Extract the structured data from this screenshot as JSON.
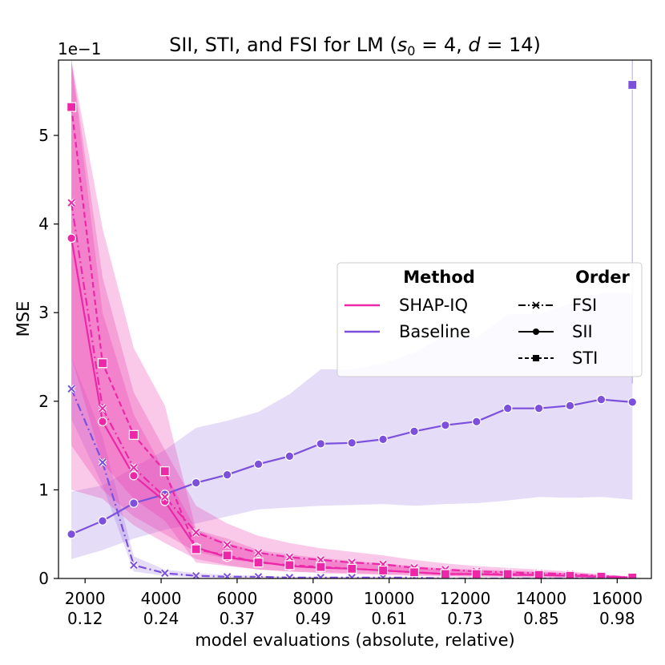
{
  "chart_data": {
    "type": "line",
    "title": "SII, STI, and FSI for LM (s0 = 4, d = 14)",
    "title_parts": {
      "prefix": "SII, STI, and FSI for LM (",
      "s_sym": "s",
      "s_sub": "0",
      "s_val": " = 4, ",
      "d_sym": "d",
      "d_val": " = 14)"
    },
    "ylabel": "MSE",
    "xlabel": "model evaluations (absolute, relative)",
    "y_scale_label": "1e−1",
    "xlim": [
      1300,
      16900
    ],
    "ylim": [
      0,
      5.85
    ],
    "x_ticks": [
      {
        "value": 2000,
        "abs": "2000",
        "rel": "0.12"
      },
      {
        "value": 4000,
        "abs": "4000",
        "rel": "0.24"
      },
      {
        "value": 6000,
        "abs": "6000",
        "rel": "0.37"
      },
      {
        "value": 8000,
        "abs": "8000",
        "rel": "0.49"
      },
      {
        "value": 10000,
        "abs": "10000",
        "rel": "0.61"
      },
      {
        "value": 12000,
        "abs": "12000",
        "rel": "0.73"
      },
      {
        "value": 14000,
        "abs": "14000",
        "rel": "0.85"
      },
      {
        "value": 16000,
        "abs": "16000",
        "rel": "0.98"
      }
    ],
    "y_ticks": [
      {
        "value": 0,
        "label": "0"
      },
      {
        "value": 1,
        "label": "1"
      },
      {
        "value": 2,
        "label": "2"
      },
      {
        "value": 3,
        "label": "3"
      },
      {
        "value": 4,
        "label": "4"
      },
      {
        "value": 5,
        "label": "5"
      }
    ],
    "x": [
      1640,
      2460,
      3280,
      4100,
      4920,
      5740,
      6560,
      7380,
      8200,
      9020,
      9840,
      10660,
      11480,
      12300,
      13120,
      13940,
      14760,
      15580,
      16400
    ],
    "colors": {
      "shapiq": "#ec27a8",
      "baseline": "#7c4fdc"
    },
    "series": [
      {
        "name": "Baseline SII",
        "method": "Baseline",
        "order": "SII",
        "style": "solid",
        "marker": "circle",
        "values": [
          0.5,
          0.65,
          0.85,
          0.95,
          1.08,
          1.17,
          1.29,
          1.38,
          1.52,
          1.53,
          1.57,
          1.66,
          1.73,
          1.77,
          1.92,
          1.92,
          1.95,
          2.02,
          1.99
        ],
        "lower": [
          0.22,
          0.32,
          0.45,
          0.55,
          0.62,
          0.7,
          0.78,
          0.8,
          0.82,
          0.83,
          0.84,
          0.82,
          0.84,
          0.85,
          0.88,
          0.92,
          0.91,
          0.92,
          0.89
        ],
        "upper": [
          0.98,
          1.05,
          1.25,
          1.45,
          1.7,
          1.78,
          1.88,
          2.08,
          2.36,
          2.36,
          2.43,
          2.55,
          2.74,
          2.72,
          2.98,
          2.98,
          3.1,
          3.22,
          3.22
        ]
      },
      {
        "name": "Baseline FSI",
        "method": "Baseline",
        "order": "FSI",
        "style": "dashdot",
        "marker": "x",
        "values": [
          2.14,
          1.31,
          0.15,
          0.06,
          0.03,
          0.02,
          0.02,
          0.01,
          0.01,
          0.01,
          0.01,
          0.01,
          0.0,
          0.0,
          0.0,
          0.0,
          0.0,
          0.0,
          0.0
        ],
        "lower": [
          1.8,
          1.05,
          0.08,
          0.03,
          0.01,
          0.01,
          0.0,
          0.0,
          0.0,
          0.0,
          0.0,
          0.0,
          0.0,
          0.0,
          0.0,
          0.0,
          0.0,
          0.0,
          0.0
        ],
        "upper": [
          2.5,
          1.6,
          0.25,
          0.1,
          0.06,
          0.04,
          0.03,
          0.02,
          0.02,
          0.02,
          0.02,
          0.01,
          0.01,
          0.01,
          0.01,
          0.01,
          0.01,
          0.01,
          0.01
        ]
      },
      {
        "name": "Baseline STI",
        "method": "Baseline",
        "order": "STI",
        "style": "dashed",
        "marker": "square",
        "values": [
          null,
          null,
          null,
          null,
          null,
          null,
          null,
          null,
          null,
          null,
          null,
          null,
          null,
          null,
          null,
          null,
          null,
          null,
          5.57
        ],
        "lower": [
          null,
          null,
          null,
          null,
          null,
          null,
          null,
          null,
          null,
          null,
          null,
          null,
          null,
          null,
          null,
          null,
          null,
          null,
          2.2
        ],
        "upper": [
          null,
          null,
          null,
          null,
          null,
          null,
          null,
          null,
          null,
          null,
          null,
          null,
          null,
          null,
          null,
          null,
          null,
          null,
          5.85
        ]
      },
      {
        "name": "SHAP-IQ SII",
        "method": "SHAP-IQ",
        "order": "SII",
        "style": "solid",
        "marker": "circle",
        "values": [
          3.84,
          1.77,
          1.16,
          0.87,
          0.35,
          0.24,
          0.19,
          0.14,
          0.12,
          0.11,
          0.09,
          0.07,
          0.05,
          0.05,
          0.04,
          0.04,
          0.03,
          0.02,
          0.01
        ],
        "lower": [
          1.0,
          0.9,
          0.6,
          0.4,
          0.22,
          0.15,
          0.1,
          0.08,
          0.06,
          0.05,
          0.04,
          0.03,
          0.02,
          0.02,
          0.02,
          0.01,
          0.01,
          0.0,
          0.0
        ],
        "upper": [
          5.85,
          3.0,
          1.85,
          1.2,
          0.55,
          0.4,
          0.3,
          0.24,
          0.2,
          0.18,
          0.15,
          0.12,
          0.1,
          0.09,
          0.08,
          0.07,
          0.06,
          0.04,
          0.02
        ]
      },
      {
        "name": "SHAP-IQ FSI",
        "method": "SHAP-IQ",
        "order": "FSI",
        "style": "dashdot",
        "marker": "x",
        "values": [
          4.24,
          1.92,
          1.25,
          0.92,
          0.52,
          0.38,
          0.29,
          0.24,
          0.21,
          0.18,
          0.16,
          0.12,
          0.1,
          0.08,
          0.07,
          0.06,
          0.05,
          0.03,
          0.01
        ],
        "lower": [
          1.5,
          1.0,
          0.7,
          0.5,
          0.3,
          0.22,
          0.17,
          0.14,
          0.12,
          0.1,
          0.09,
          0.07,
          0.05,
          0.04,
          0.04,
          0.03,
          0.02,
          0.01,
          0.0
        ],
        "upper": [
          5.85,
          3.4,
          2.1,
          1.45,
          0.82,
          0.62,
          0.48,
          0.4,
          0.34,
          0.3,
          0.26,
          0.21,
          0.17,
          0.14,
          0.12,
          0.1,
          0.08,
          0.05,
          0.02
        ]
      },
      {
        "name": "SHAP-IQ STI",
        "method": "SHAP-IQ",
        "order": "STI",
        "style": "dashed",
        "marker": "square",
        "values": [
          5.32,
          2.43,
          1.62,
          1.21,
          0.33,
          0.26,
          0.18,
          0.15,
          0.13,
          0.11,
          0.09,
          0.07,
          0.05,
          0.05,
          0.05,
          0.04,
          0.03,
          0.02,
          0.01
        ],
        "lower": [
          2.5,
          1.3,
          0.9,
          0.65,
          0.18,
          0.14,
          0.1,
          0.08,
          0.07,
          0.06,
          0.05,
          0.04,
          0.03,
          0.02,
          0.02,
          0.02,
          0.01,
          0.01,
          0.0
        ],
        "upper": [
          5.85,
          3.95,
          2.6,
          1.95,
          0.55,
          0.45,
          0.32,
          0.27,
          0.23,
          0.2,
          0.17,
          0.14,
          0.11,
          0.1,
          0.09,
          0.08,
          0.06,
          0.04,
          0.02
        ]
      }
    ],
    "legend": {
      "placement": "center-right",
      "method_header": "Method",
      "order_header": "Order",
      "methods": [
        {
          "label": "SHAP-IQ",
          "color": "#ec27a8"
        },
        {
          "label": "Baseline",
          "color": "#7c4fdc"
        }
      ],
      "orders": [
        {
          "label": "FSI",
          "style": "dashdot",
          "marker": "x"
        },
        {
          "label": "SII",
          "style": "solid",
          "marker": "circle"
        },
        {
          "label": "STI",
          "style": "dashed",
          "marker": "square"
        }
      ]
    }
  }
}
